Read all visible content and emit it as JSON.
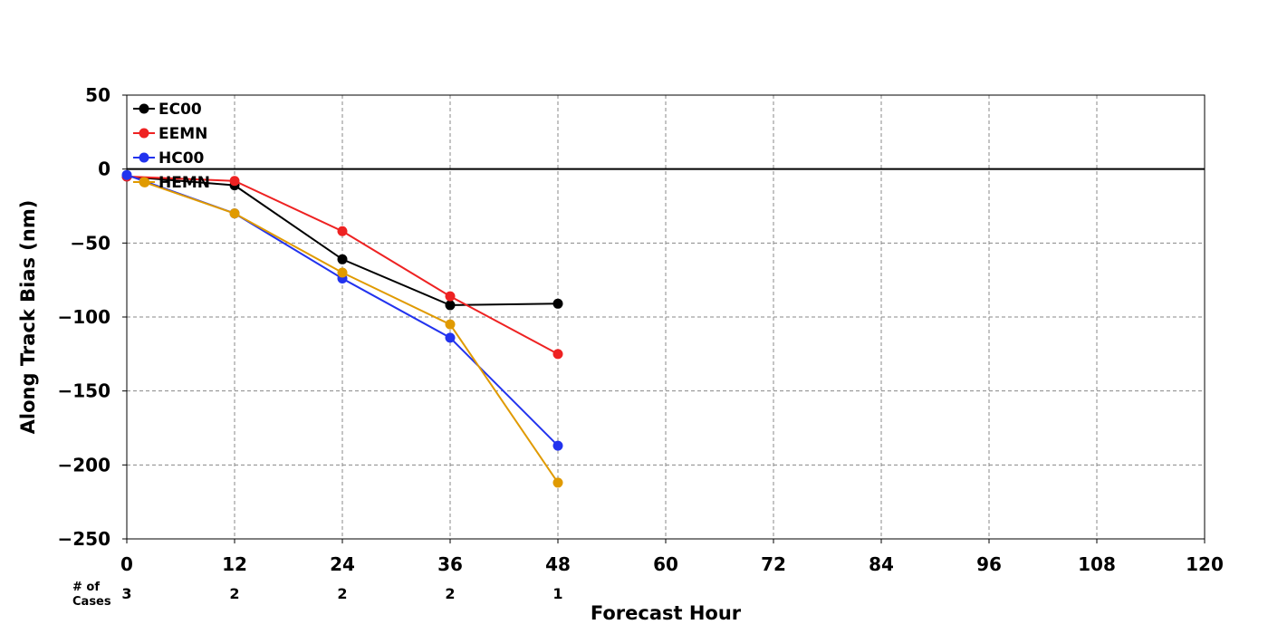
{
  "chart_data": {
    "type": "line",
    "xlabel": "Forecast Hour",
    "ylabel": "Along Track Bias (nm)",
    "xlim": [
      0,
      120
    ],
    "ylim": [
      -250,
      50
    ],
    "xticks": [
      0,
      12,
      24,
      36,
      48,
      60,
      72,
      84,
      96,
      108,
      120
    ],
    "yticks": [
      50,
      0,
      -50,
      -100,
      -150,
      -200,
      -250
    ],
    "ytick_labels": [
      "50",
      "0",
      "−50",
      "−100",
      "−150",
      "−200",
      "−250"
    ],
    "grid": true,
    "zero_line": true,
    "legend_position": "top-left",
    "series": [
      {
        "name": "EC00",
        "color": "#000000",
        "x": [
          0,
          12,
          24,
          36,
          48
        ],
        "y": [
          -5,
          -11,
          -61,
          -92,
          -91
        ]
      },
      {
        "name": "EEMN",
        "color": "#ee2222",
        "x": [
          0,
          12,
          24,
          36,
          48
        ],
        "y": [
          -5,
          -8,
          -42,
          -86,
          -125
        ]
      },
      {
        "name": "HC00",
        "color": "#2233ee",
        "x": [
          0,
          12,
          24,
          36,
          48
        ],
        "y": [
          -4,
          -30,
          -74,
          -114,
          -187
        ]
      },
      {
        "name": "HEMN",
        "color": "#e09a00",
        "x": [
          2,
          12,
          24,
          36,
          48
        ],
        "y": [
          -9,
          -30,
          -70,
          -105,
          -212
        ]
      }
    ],
    "cases": {
      "label_line1": "# of",
      "label_line2": "Cases",
      "x": [
        0,
        12,
        24,
        36,
        48
      ],
      "counts": [
        "3",
        "2",
        "2",
        "2",
        "1"
      ]
    }
  }
}
